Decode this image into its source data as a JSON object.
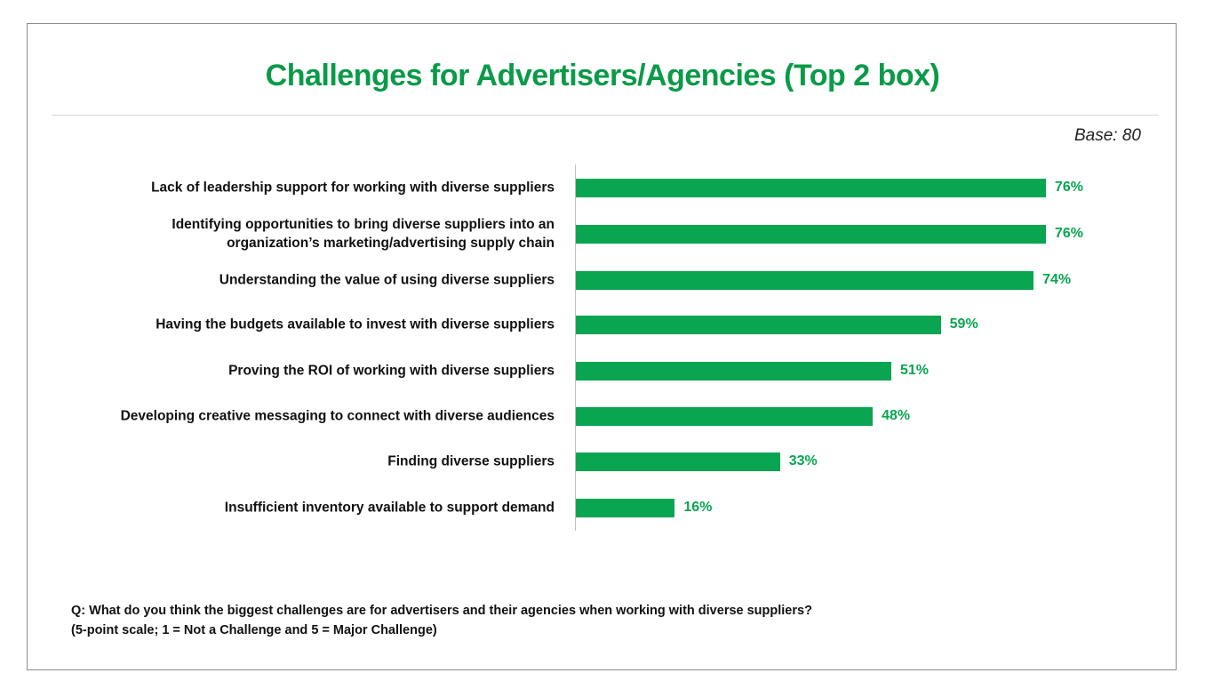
{
  "chart_data": {
    "type": "bar",
    "orientation": "horizontal",
    "title": "Challenges for Advertisers/Agencies (Top 2 box)",
    "base_note": "Base: 80",
    "categories": [
      "Lack of leadership support for working with diverse suppliers",
      "Identifying opportunities to bring diverse suppliers into an organization’s marketing/advertising supply chain",
      "Understanding the value of using diverse suppliers",
      "Having the budgets available to invest with diverse suppliers",
      "Proving the ROI of working with diverse suppliers",
      "Developing creative messaging to connect with diverse audiences",
      "Finding diverse suppliers",
      "Insufficient inventory available to support demand"
    ],
    "category_lines": [
      [
        "Lack of leadership support for working with diverse suppliers"
      ],
      [
        "Identifying opportunities to bring diverse suppliers into an",
        "organization’s marketing/advertising supply chain"
      ],
      [
        "Understanding the value of using diverse suppliers"
      ],
      [
        "Having the budgets available to invest with diverse suppliers"
      ],
      [
        "Proving the ROI of working with diverse suppliers"
      ],
      [
        "Developing creative messaging to connect with diverse audiences"
      ],
      [
        "Finding diverse suppliers"
      ],
      [
        "Insufficient inventory available to support demand"
      ]
    ],
    "values": [
      76,
      76,
      74,
      59,
      51,
      48,
      33,
      16
    ],
    "value_labels": [
      "76%",
      "76%",
      "74%",
      "59%",
      "51%",
      "48%",
      "33%",
      "16%"
    ],
    "xlim": [
      0,
      100
    ],
    "grid": false,
    "legend": false,
    "colors": {
      "bar": "#0aa550",
      "title": "#0a9a48",
      "value_label": "#0aa550"
    }
  },
  "footnote": {
    "question": "Q: What do you think the biggest challenges are for advertisers and their agencies when working with diverse suppliers?",
    "scale": "(5-point scale; 1 = Not a Challenge and 5 = Major Challenge)"
  }
}
